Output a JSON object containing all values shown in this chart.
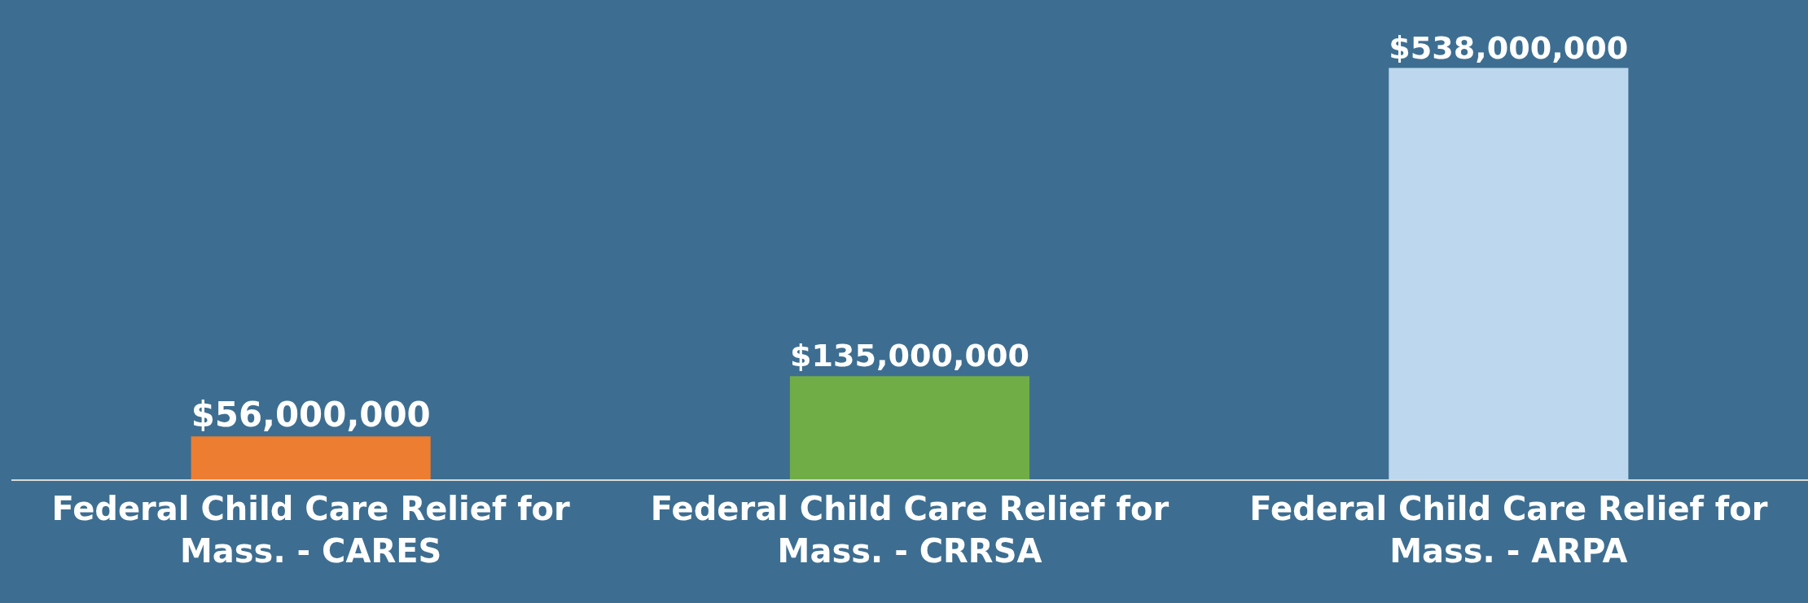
{
  "chart_data": {
    "type": "bar",
    "categories": [
      "Federal Child Care Relief for Mass. - CARES",
      "Federal Child Care Relief for Mass. - CRRSA",
      "Federal Child Care Relief for Mass. - ARPA"
    ],
    "values": [
      56000000,
      135000000,
      538000000
    ],
    "colors": [
      "#ed7d31",
      "#70ad47",
      "#bdd7ee"
    ],
    "value_labels": [
      "$56,000,000",
      "$135,000,000",
      "$538,000,000"
    ],
    "grid": false,
    "legend": false
  }
}
